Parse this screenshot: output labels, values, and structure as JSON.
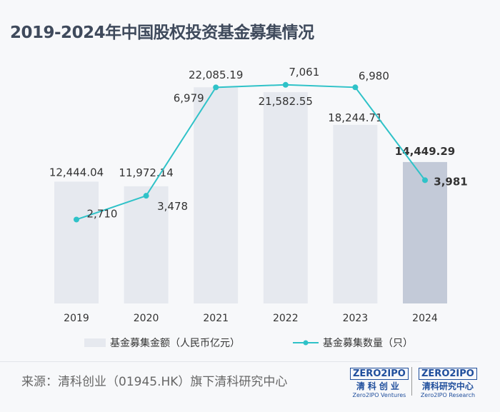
{
  "title": "2019-2024年中国股权投资基金募集情况",
  "chart_data": {
    "type": "bar+line",
    "title": "2019-2024年中国股权投资基金募集情况",
    "categories": [
      "2019",
      "2020",
      "2021",
      "2022",
      "2023",
      "2024"
    ],
    "series": [
      {
        "name": "基金募集金额（人民币亿元）",
        "type": "bar",
        "values": [
          12444.04,
          11972.14,
          22085.19,
          21582.55,
          18244.71,
          14449.29
        ],
        "labels": [
          "12,444.04",
          "11,972.14",
          "22,085.19",
          "21,582.55",
          "18,244.71",
          "14,449.29"
        ],
        "color": "#e6e9ef",
        "highlight_color": "#c3cad8"
      },
      {
        "name": "基金募集数量（只）",
        "type": "line",
        "values": [
          2710,
          3478,
          6979,
          7061,
          6980,
          3981
        ],
        "labels": [
          "2,710",
          "3,478",
          "6,979",
          "7,061",
          "6,980",
          "3,981"
        ],
        "color": "#2fc2c8"
      }
    ],
    "bar_ylim": [
      0,
      31000
    ],
    "line_ylim": [
      0,
      9800
    ],
    "grid": false,
    "legend_position": "bottom"
  },
  "footer": {
    "source": "来源：清科创业（01945.HK）旗下清科研究中心",
    "logo1": {
      "brand": "ZERO2IPO",
      "cn": "清科创业",
      "en": "Zero2IPO Ventures"
    },
    "logo2": {
      "brand": "ZERO2IPO",
      "cn": "清科研究中心",
      "en": "Zero2IPO Research"
    }
  }
}
